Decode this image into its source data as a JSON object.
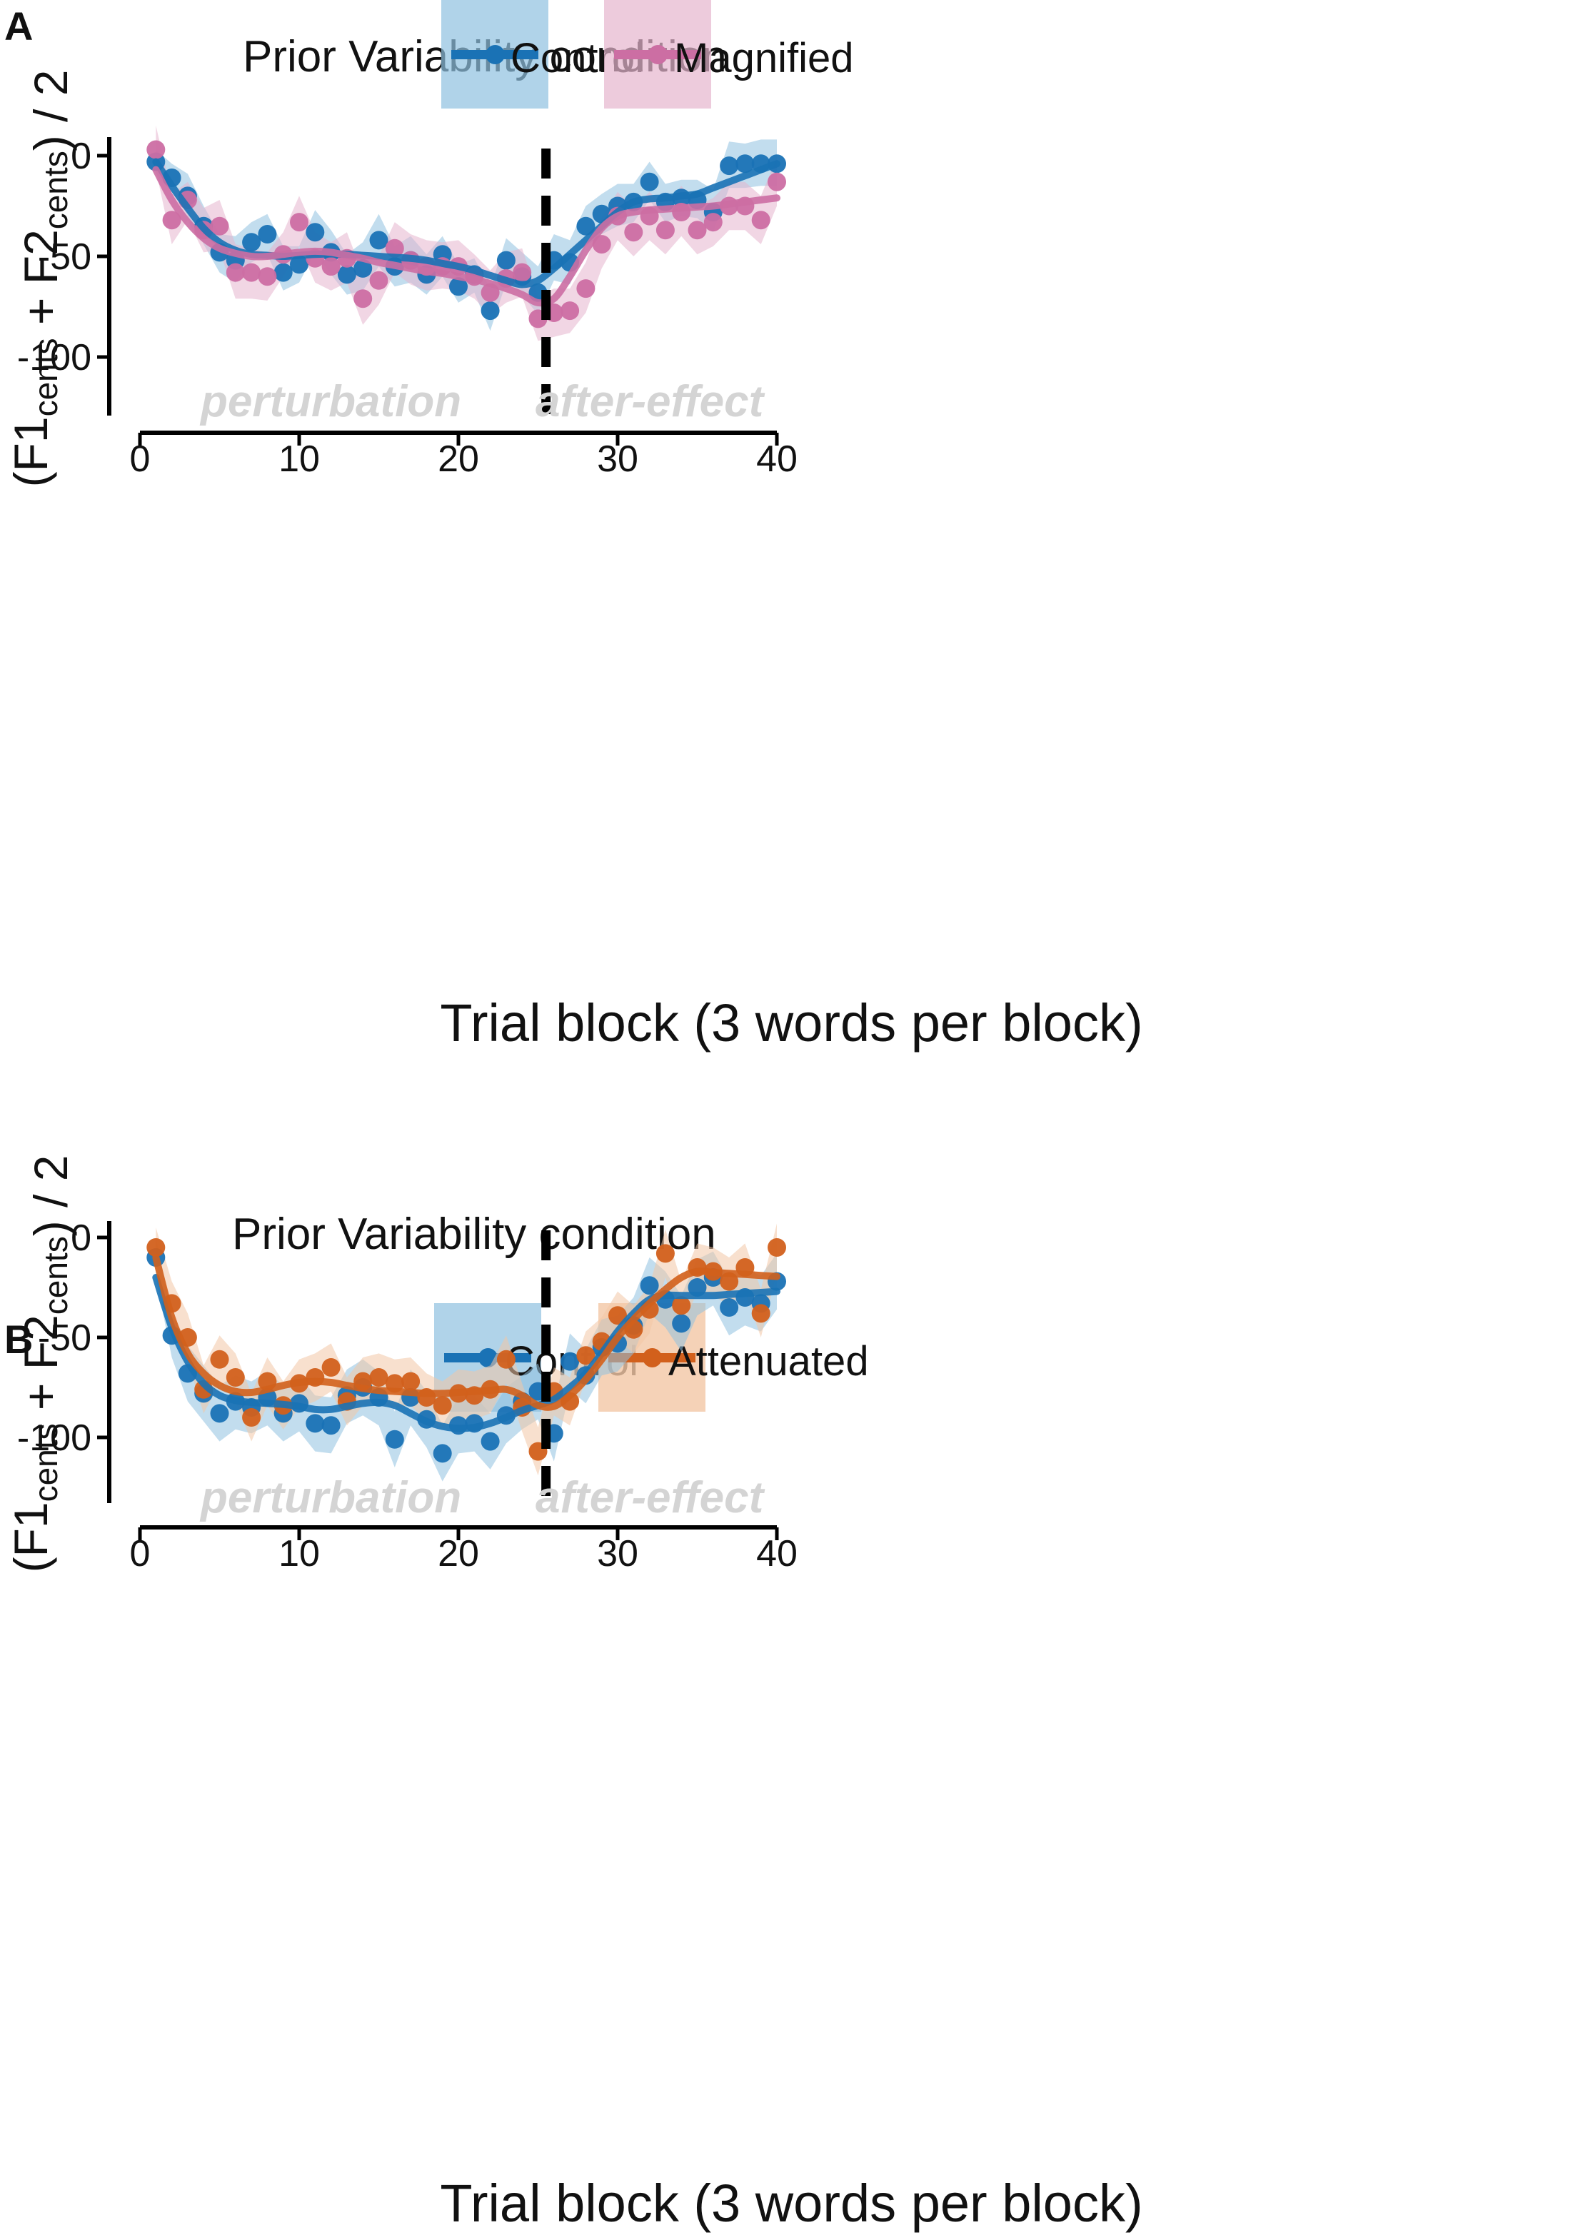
{
  "chart_data": [
    {
      "panel": "A",
      "type": "line",
      "legend_title": "Prior Variability condition",
      "xlabel": "Trial block (3 words per block)",
      "ylabel": "(F1cents + F2cents) / 2",
      "ylabel_parts": {
        "open": "(F1",
        "sub1": "cents",
        "mid": " + F2",
        "sub2": "cents",
        "close": ") / 2"
      },
      "xlim": [
        0,
        40
      ],
      "ylim": [
        -130,
        10
      ],
      "xticks": [
        "0",
        "10",
        "20",
        "30",
        "40"
      ],
      "yticks": [
        "0",
        "-50",
        "-100"
      ],
      "ytick_values": [
        0,
        -50,
        -100
      ],
      "xtick_values": [
        0,
        10,
        20,
        30,
        40
      ],
      "divider_x": 25.5,
      "annotations": [
        "perturbation",
        "after-effect"
      ],
      "series": [
        {
          "name": "Control",
          "line_color": "#1a72b5",
          "band_color": "#8fc1e0",
          "points": [
            -3,
            -11,
            -20,
            -35,
            -48,
            -52,
            -43,
            -39,
            -58,
            -54,
            -38,
            -48,
            -59,
            -56,
            -42,
            -55,
            -52,
            -59,
            -49,
            -65,
            -59,
            -77,
            -52,
            -60,
            -68,
            -52,
            -53,
            -35,
            -29,
            -25,
            -23,
            -13,
            -23,
            -21,
            -22,
            -28,
            -5,
            -4,
            -4,
            -4
          ],
          "smooth": [
            -3,
            -15,
            -26,
            -36,
            -43,
            -47,
            -49,
            -49.5,
            -50,
            -49.5,
            -49,
            -48.8,
            -49,
            -49.5,
            -50,
            -50.5,
            -51,
            -52,
            -53.5,
            -55,
            -57,
            -59.5,
            -62,
            -64,
            -62,
            -56,
            -49,
            -42,
            -35,
            -28,
            -23,
            -21.5,
            -21,
            -20,
            -19,
            -16,
            -13,
            -10,
            -7,
            -4
          ],
          "ci_upper": [
            3,
            -4,
            -9,
            -25,
            -39,
            -40,
            -33,
            -29,
            -45,
            -45,
            -27,
            -37,
            -49,
            -43,
            -29,
            -45,
            -40,
            -49,
            -40,
            -54,
            -51,
            -66,
            -41,
            -48,
            -55,
            -39,
            -42,
            -25,
            -19,
            -14,
            -14,
            -3,
            -14,
            -12,
            -12,
            -17,
            7,
            6,
            8,
            8
          ],
          "ci_lower": [
            -9,
            -18,
            -30,
            -44,
            -58,
            -63,
            -53,
            -49,
            -67,
            -63,
            -48,
            -59,
            -69,
            -67,
            -55,
            -65,
            -63,
            -69,
            -60,
            -73,
            -68,
            -87,
            -63,
            -69,
            -79,
            -62,
            -64,
            -45,
            -39,
            -35,
            -33,
            -22,
            -33,
            -30,
            -31,
            -38,
            -16,
            -16,
            -15,
            -15
          ]
        },
        {
          "name": "Magnified",
          "line_color": "#cc6ea3",
          "band_color": "#e6b5cd",
          "points": [
            3,
            -32,
            -22,
            -37,
            -35,
            -58,
            -58,
            -60,
            -49,
            -33,
            -51,
            -55,
            -51,
            -71,
            -62,
            -46,
            -52,
            -55,
            -55,
            -55,
            -60,
            -68,
            -61,
            -58,
            -81,
            -78,
            -77,
            -66,
            -44,
            -30,
            -38,
            -30,
            -37,
            -28,
            -37,
            -33,
            -25,
            -25,
            -32,
            -13
          ],
          "smooth": [
            -7,
            -22,
            -33,
            -41,
            -46,
            -48.5,
            -50,
            -50,
            -49,
            -48,
            -47.5,
            -48,
            -49.5,
            -51,
            -53,
            -54.5,
            -56,
            -57.5,
            -58.5,
            -60,
            -61.5,
            -63.5,
            -66,
            -69,
            -73,
            -71,
            -60,
            -47,
            -36,
            -30,
            -28,
            -27,
            -26.5,
            -26,
            -25.5,
            -25,
            -24,
            -23,
            -22,
            -21
          ],
          "ci_upper": [
            15,
            -19,
            -13,
            -26,
            -22,
            -44,
            -46,
            -48,
            -38,
            -20,
            -38,
            -43,
            -38,
            -59,
            -50,
            -33,
            -39,
            -42,
            -43,
            -42,
            -49,
            -57,
            -48,
            -46,
            -70,
            -66,
            -66,
            -53,
            -31,
            -18,
            -26,
            -18,
            -26,
            -15,
            -25,
            -21,
            -13,
            -13,
            -20,
            -1
          ],
          "ci_lower": [
            -7,
            -44,
            -32,
            -48,
            -47,
            -71,
            -71,
            -72,
            -60,
            -45,
            -63,
            -67,
            -63,
            -84,
            -74,
            -58,
            -64,
            -67,
            -66,
            -67,
            -71,
            -79,
            -73,
            -70,
            -92,
            -90,
            -88,
            -78,
            -56,
            -42,
            -50,
            -42,
            -49,
            -40,
            -49,
            -45,
            -37,
            -37,
            -44,
            -25
          ]
        }
      ]
    },
    {
      "panel": "B",
      "type": "line",
      "legend_title": "Prior Variability condition",
      "xlabel": "Trial block (3 words per block)",
      "ylabel": "(F1cents + F2cents) / 2",
      "ylabel_parts": {
        "open": "(F1",
        "sub1": "cents",
        "mid": " + F2",
        "sub2": "cents",
        "close": ") / 2"
      },
      "xlim": [
        0,
        40
      ],
      "ylim": [
        -130,
        10
      ],
      "xticks": [
        "0",
        "10",
        "20",
        "30",
        "40"
      ],
      "yticks": [
        "0",
        "-50",
        "-100"
      ],
      "ytick_values": [
        0,
        -50,
        -100
      ],
      "xtick_values": [
        0,
        10,
        20,
        30,
        40
      ],
      "divider_x": 25.5,
      "annotations": [
        "perturbation",
        "after-effect"
      ],
      "series": [
        {
          "name": "Control",
          "line_color": "#1a72b5",
          "band_color": "#8fc1e0",
          "points": [
            -10,
            -49,
            -68,
            -78,
            -88,
            -82,
            -85,
            -80,
            -88,
            -83,
            -93,
            -94,
            -79,
            -75,
            -80,
            -101,
            -80,
            -91,
            -108,
            -94,
            -93,
            -102,
            -89,
            -82,
            -77,
            -98,
            -62,
            -69,
            -55,
            -53,
            -44,
            -24,
            -31,
            -43,
            -25,
            -20,
            -35,
            -30,
            -33,
            -22
          ],
          "smooth": [
            -20,
            -45,
            -62,
            -73,
            -79,
            -81.5,
            -82.5,
            -83,
            -83.5,
            -84.5,
            -86,
            -86,
            -84.5,
            -83,
            -82.5,
            -84,
            -88,
            -92,
            -94.5,
            -95.5,
            -95,
            -93,
            -90,
            -86.5,
            -84,
            -81,
            -75,
            -68,
            -58,
            -47,
            -38,
            -31,
            -29,
            -29,
            -29,
            -29,
            -28.5,
            -28,
            -27.5,
            -27
          ],
          "ci_upper": [
            0,
            -38,
            -54,
            -64,
            -74,
            -69,
            -72,
            -67,
            -74,
            -69,
            -79,
            -80,
            -66,
            -61,
            -67,
            -87,
            -66,
            -77,
            -94,
            -80,
            -79,
            -88,
            -75,
            -69,
            -63,
            -84,
            -48,
            -56,
            -41,
            -39,
            -30,
            -10,
            -17,
            -29,
            -11,
            -7,
            -21,
            -16,
            -19,
            -8
          ],
          "ci_lower": [
            -20,
            -60,
            -82,
            -92,
            -102,
            -96,
            -98,
            -94,
            -102,
            -97,
            -107,
            -108,
            -93,
            -89,
            -94,
            -115,
            -94,
            -105,
            -122,
            -108,
            -107,
            -116,
            -103,
            -96,
            -91,
            -112,
            -76,
            -83,
            -69,
            -67,
            -58,
            -38,
            -45,
            -57,
            -39,
            -34,
            -49,
            -44,
            -47,
            -36
          ]
        },
        {
          "name": "Attenuated",
          "line_color": "#d2601c",
          "band_color": "#f2c7a5",
          "points": [
            -5,
            -33,
            -50,
            -76,
            -61,
            -70,
            -90,
            -72,
            -84,
            -73,
            -70,
            -65,
            -82,
            -72,
            -70,
            -73,
            -72,
            -80,
            -84,
            -78,
            -79,
            -76,
            -61,
            -85,
            -107,
            -77,
            -82,
            -59,
            -52,
            -39,
            -46,
            -36,
            -8,
            -34,
            -15,
            -17,
            -22,
            -15,
            -38,
            -5
          ],
          "smooth": [
            -10,
            -40,
            -58,
            -68,
            -74,
            -77,
            -77.5,
            -76,
            -74,
            -72.5,
            -72,
            -72.5,
            -74,
            -75.5,
            -76.5,
            -77,
            -77.5,
            -78,
            -78,
            -77.5,
            -77,
            -76.5,
            -76,
            -79,
            -84,
            -84.5,
            -79,
            -71,
            -61,
            -50,
            -41,
            -33,
            -26,
            -20,
            -17,
            -17.5,
            -18,
            -18.5,
            -19,
            -19.5
          ],
          "ci_upper": [
            5,
            -22,
            -38,
            -64,
            -49,
            -58,
            -78,
            -60,
            -72,
            -61,
            -58,
            -53,
            -70,
            -60,
            -58,
            -61,
            -60,
            -68,
            -72,
            -66,
            -67,
            -64,
            -49,
            -73,
            -95,
            -65,
            -70,
            -47,
            -40,
            -27,
            -34,
            -24,
            4,
            -22,
            -3,
            -5,
            -10,
            -3,
            -26,
            7
          ],
          "ci_lower": [
            -15,
            -44,
            -62,
            -88,
            -73,
            -82,
            -102,
            -84,
            -96,
            -85,
            -82,
            -77,
            -94,
            -84,
            -82,
            -85,
            -84,
            -92,
            -96,
            -90,
            -91,
            -88,
            -73,
            -97,
            -119,
            -89,
            -94,
            -71,
            -64,
            -51,
            -58,
            -48,
            -20,
            -46,
            -27,
            -29,
            -34,
            -27,
            -50,
            -17
          ]
        }
      ]
    }
  ]
}
